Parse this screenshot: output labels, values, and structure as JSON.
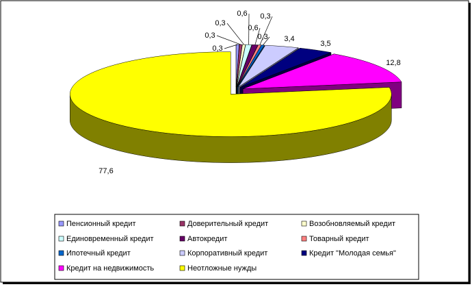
{
  "chart_data": {
    "type": "pie3d",
    "categories": [
      "Пенсионный кредит",
      "Доверительный кредит",
      "Возобновляемый кредит",
      "Единовременный кредит",
      "Автокредит",
      "Товарный кредит",
      "Ипотечный кредит",
      "Корпоративный кредит",
      "Кредит \"Молодая семья\"",
      "Кредит на недвижимость",
      "Неотложные нужды"
    ],
    "values": [
      0.3,
      0.3,
      0.3,
      0.6,
      0.6,
      0.3,
      0.3,
      3.4,
      3.5,
      12.8,
      77.6
    ],
    "value_labels": [
      "0,3",
      "0,3",
      "0,3",
      "0,6",
      "0,6",
      "0,3",
      "0,3",
      "3,4",
      "3,5",
      "12,8",
      "77,6"
    ],
    "colors": [
      "#9999ff",
      "#993366",
      "#ffffcc",
      "#ccffff",
      "#660066",
      "#ff8080",
      "#0066cc",
      "#ccccff",
      "#000080",
      "#ff00ff",
      "#ffff00"
    ],
    "legend": "bottom"
  }
}
